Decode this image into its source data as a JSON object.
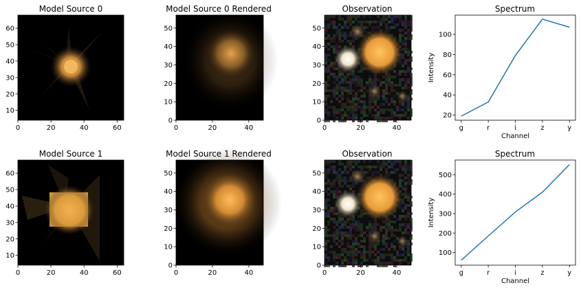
{
  "panels": [
    {
      "title": "Model Source 0",
      "kind": "image",
      "xlim": [
        0,
        64
      ],
      "ylim": [
        4,
        68
      ],
      "xticks": [
        0,
        20,
        40,
        60
      ],
      "yticks": [
        10,
        20,
        30,
        40,
        50,
        60
      ]
    },
    {
      "title": "Model Source 0 Rendered",
      "kind": "image",
      "xlim": [
        0,
        48
      ],
      "ylim": [
        0,
        57
      ],
      "xticks": [
        0,
        20,
        40
      ],
      "yticks": [
        0,
        10,
        20,
        30,
        40,
        50
      ]
    },
    {
      "title": "Observation",
      "kind": "image",
      "xlim": [
        0,
        48
      ],
      "ylim": [
        0,
        57
      ],
      "xticks": [
        0,
        20,
        40
      ],
      "yticks": [
        0,
        10,
        20,
        30,
        40,
        50
      ]
    },
    {
      "title": "Model Source 1",
      "kind": "image",
      "xlim": [
        0,
        64
      ],
      "ylim": [
        4,
        68
      ],
      "xticks": [
        0,
        20,
        40,
        60
      ],
      "yticks": [
        10,
        20,
        30,
        40,
        50,
        60
      ]
    },
    {
      "title": "Model Source 1 Rendered",
      "kind": "image",
      "xlim": [
        0,
        48
      ],
      "ylim": [
        0,
        57
      ],
      "xticks": [
        0,
        20,
        40
      ],
      "yticks": [
        0,
        10,
        20,
        30,
        40,
        50
      ]
    },
    {
      "title": "Observation",
      "kind": "image",
      "xlim": [
        0,
        48
      ],
      "ylim": [
        0,
        57
      ],
      "xticks": [
        0,
        20,
        40
      ],
      "yticks": [
        0,
        10,
        20,
        30,
        40,
        50
      ]
    }
  ],
  "chart_data": [
    {
      "type": "line",
      "title": "Spectrum",
      "xlabel": "Channel",
      "ylabel": "Intensity",
      "categories": [
        "g",
        "r",
        "i",
        "z",
        "y"
      ],
      "values": [
        19,
        33,
        79,
        115,
        107
      ],
      "ylim": [
        15,
        119
      ],
      "yticks": [
        20,
        40,
        60,
        80,
        100
      ],
      "color": "#1f77b4"
    },
    {
      "type": "line",
      "title": "Spectrum",
      "xlabel": "Channel",
      "ylabel": "Intensity",
      "categories": [
        "g",
        "r",
        "i",
        "z",
        "y"
      ],
      "values": [
        60,
        185,
        308,
        410,
        552
      ],
      "ylim": [
        35,
        575
      ],
      "yticks": [
        100,
        200,
        300,
        400,
        500
      ],
      "color": "#1f77b4"
    }
  ]
}
